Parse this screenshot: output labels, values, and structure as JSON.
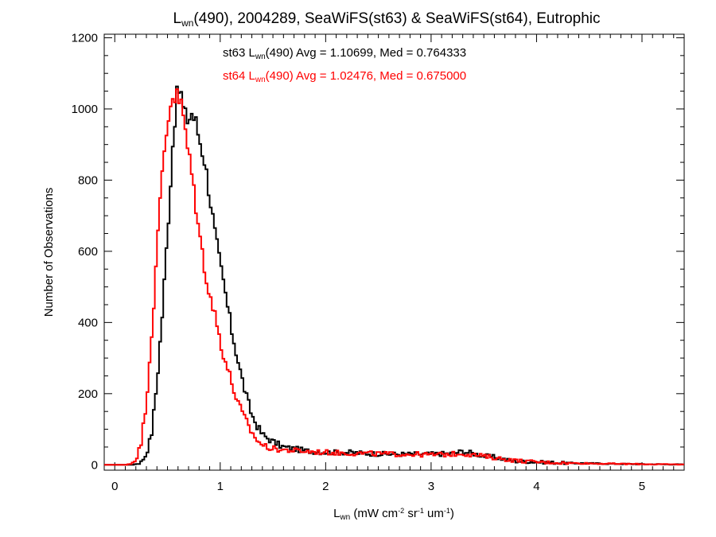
{
  "chart_data": {
    "type": "line",
    "title": {
      "main": "L",
      "sub": "wn",
      "rest": "(490), 2004289, SeaWiFS(st63) & SeaWiFS(st64), Eutrophic"
    },
    "xlabel": {
      "main": "L",
      "sub": "wn",
      "p1": " (mW cm",
      "sup1": "-2",
      "p2": " sr",
      "sup2": "-1",
      "p3": " um",
      "sup3": "-1",
      "p4": ")"
    },
    "ylabel": "Number of Observations",
    "xlim": [
      -0.1,
      5.4
    ],
    "ylim": [
      -15,
      1210
    ],
    "x_ticks": [
      0,
      1,
      2,
      3,
      4,
      5
    ],
    "y_ticks": [
      0,
      200,
      400,
      600,
      800,
      1000,
      1200
    ],
    "x_tick_labels": [
      "0",
      "1",
      "2",
      "3",
      "4",
      "5"
    ],
    "y_tick_labels": [
      "0",
      "200",
      "400",
      "600",
      "800",
      "1000",
      "1200"
    ],
    "grid": false,
    "legend": "annotations top-center",
    "annotations": [
      {
        "a": "st63 L",
        "sub": "wn",
        "b": "(490) Avg = 1.10699, Med = 0.764333",
        "color": "#000000"
      },
      {
        "a": "st64 L",
        "sub": "wn",
        "b": "(490) Avg = 1.02476, Med = 0.675000",
        "color": "#ff0000"
      }
    ],
    "series": [
      {
        "name": "st63",
        "color": "#000000",
        "points": [
          [
            -0.1,
            0
          ],
          [
            0.15,
            0
          ],
          [
            0.2,
            2
          ],
          [
            0.25,
            8
          ],
          [
            0.3,
            30
          ],
          [
            0.35,
            90
          ],
          [
            0.4,
            230
          ],
          [
            0.45,
            420
          ],
          [
            0.5,
            650
          ],
          [
            0.53,
            800
          ],
          [
            0.56,
            950
          ],
          [
            0.6,
            1060
          ],
          [
            0.63,
            1040
          ],
          [
            0.66,
            980
          ],
          [
            0.7,
            970
          ],
          [
            0.73,
            990
          ],
          [
            0.77,
            960
          ],
          [
            0.8,
            920
          ],
          [
            0.85,
            860
          ],
          [
            0.9,
            760
          ],
          [
            0.95,
            650
          ],
          [
            1.0,
            560
          ],
          [
            1.05,
            480
          ],
          [
            1.1,
            390
          ],
          [
            1.15,
            320
          ],
          [
            1.2,
            250
          ],
          [
            1.25,
            190
          ],
          [
            1.3,
            140
          ],
          [
            1.35,
            110
          ],
          [
            1.4,
            85
          ],
          [
            1.5,
            65
          ],
          [
            1.6,
            50
          ],
          [
            1.7,
            45
          ],
          [
            1.8,
            40
          ],
          [
            2.0,
            35
          ],
          [
            2.2,
            35
          ],
          [
            2.4,
            32
          ],
          [
            2.6,
            30
          ],
          [
            2.8,
            30
          ],
          [
            3.0,
            30
          ],
          [
            3.2,
            32
          ],
          [
            3.3,
            38
          ],
          [
            3.4,
            32
          ],
          [
            3.5,
            25
          ],
          [
            3.6,
            22
          ],
          [
            3.7,
            15
          ],
          [
            3.8,
            10
          ],
          [
            4.0,
            8
          ],
          [
            4.3,
            5
          ],
          [
            4.7,
            3
          ],
          [
            5.0,
            2
          ],
          [
            5.4,
            1
          ]
        ]
      },
      {
        "name": "st64",
        "color": "#ff0000",
        "points": [
          [
            -0.1,
            0
          ],
          [
            0.1,
            0
          ],
          [
            0.15,
            3
          ],
          [
            0.2,
            15
          ],
          [
            0.25,
            60
          ],
          [
            0.3,
            180
          ],
          [
            0.35,
            370
          ],
          [
            0.4,
            590
          ],
          [
            0.43,
            740
          ],
          [
            0.46,
            860
          ],
          [
            0.5,
            960
          ],
          [
            0.53,
            1020
          ],
          [
            0.56,
            1040
          ],
          [
            0.6,
            1030
          ],
          [
            0.63,
            1010
          ],
          [
            0.66,
            960
          ],
          [
            0.7,
            870
          ],
          [
            0.75,
            780
          ],
          [
            0.8,
            650
          ],
          [
            0.85,
            560
          ],
          [
            0.9,
            480
          ],
          [
            0.95,
            420
          ],
          [
            1.0,
            350
          ],
          [
            1.05,
            290
          ],
          [
            1.1,
            240
          ],
          [
            1.15,
            190
          ],
          [
            1.2,
            150
          ],
          [
            1.25,
            120
          ],
          [
            1.3,
            90
          ],
          [
            1.35,
            70
          ],
          [
            1.4,
            55
          ],
          [
            1.5,
            45
          ],
          [
            1.6,
            42
          ],
          [
            1.8,
            38
          ],
          [
            2.0,
            35
          ],
          [
            2.2,
            33
          ],
          [
            2.4,
            32
          ],
          [
            2.6,
            30
          ],
          [
            2.8,
            30
          ],
          [
            3.0,
            28
          ],
          [
            3.2,
            30
          ],
          [
            3.3,
            32
          ],
          [
            3.4,
            28
          ],
          [
            3.6,
            20
          ],
          [
            3.8,
            12
          ],
          [
            4.0,
            8
          ],
          [
            4.3,
            5
          ],
          [
            4.7,
            3
          ],
          [
            5.0,
            2
          ],
          [
            5.4,
            1
          ]
        ]
      }
    ]
  }
}
